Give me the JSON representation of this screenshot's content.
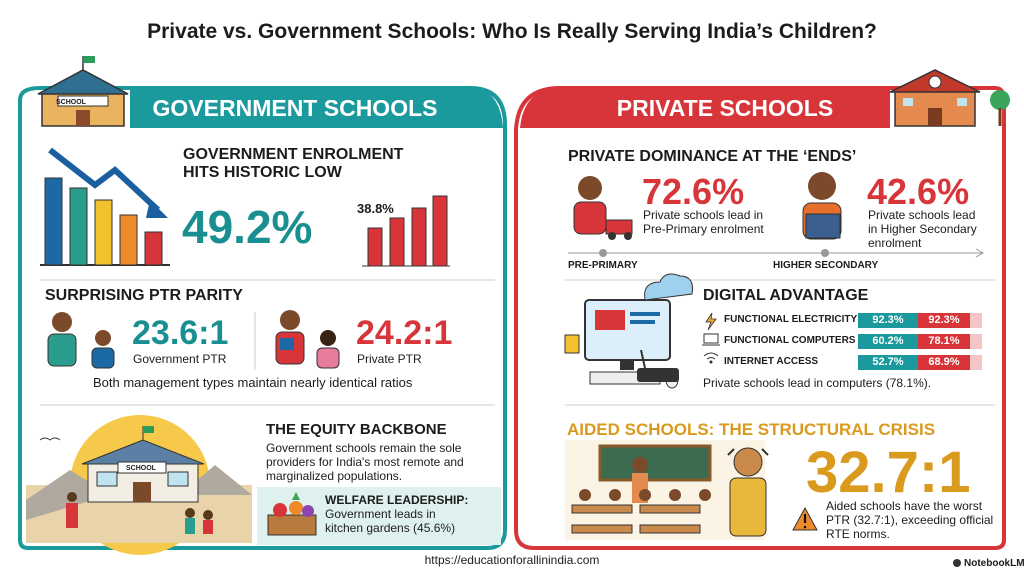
{
  "title": "Private vs. Government Schools: Who Is Really Serving India’s Children?",
  "government": {
    "heading": "GOVERNMENT SCHOOLS",
    "school_sign": "SCHOOL",
    "enrolment": {
      "title": "GOVERNMENT ENROLMENT HITS HISTORIC LOW",
      "value": "49.2%",
      "mini_label": "38.8%"
    },
    "ptr": {
      "title": "SURPRISING PTR PARITY",
      "government": {
        "value": "23.6:1",
        "label": "Government PTR"
      },
      "private": {
        "value": "24.2:1",
        "label": "Private PTR"
      },
      "note": "Both management types maintain nearly identical ratios"
    },
    "equity": {
      "title": "THE EQUITY BACKBONE",
      "text": "Government schools remain the sole providers for India's most remote and marginalized populations.",
      "welfare": {
        "title": "WELFARE LEADERSHIP:",
        "text": "Government leads in kitchen gardens (45.6%)"
      }
    }
  },
  "private": {
    "heading": "PRIVATE SCHOOLS",
    "dominance": {
      "title": "PRIVATE DOMINANCE AT THE ‘ENDS’",
      "items": [
        {
          "value": "72.6%",
          "text": "Private schools lead in Pre-Primary enrolment",
          "axis_label": "PRE-PRIMARY"
        },
        {
          "value": "42.6%",
          "text": "Private schools lead in Higher Secondary enrolment",
          "axis_label": "HIGHER SECONDARY"
        }
      ]
    },
    "digital": {
      "title": "DIGITAL ADVANTAGE",
      "rows": [
        {
          "label": "FUNCTIONAL ELECTRICITY",
          "government": "92.3%",
          "private": "92.3%"
        },
        {
          "label": "FUNCTIONAL COMPUTERS",
          "government": "60.2%",
          "private": "78.1%"
        },
        {
          "label": "INTERNET ACCESS",
          "government": "52.7%",
          "private": "68.9%"
        }
      ],
      "note": "Private schools lead in computers (78.1%)."
    },
    "aided": {
      "title": "AIDED SCHOOLS: THE STRUCTURAL CRISIS",
      "value": "32.7:1",
      "text": "Aided schools have the worst PTR (32.7:1), exceeding official RTE norms."
    }
  },
  "footer": {
    "url": "https://educationforallinindia.com",
    "brand": "NotebookLM"
  }
}
